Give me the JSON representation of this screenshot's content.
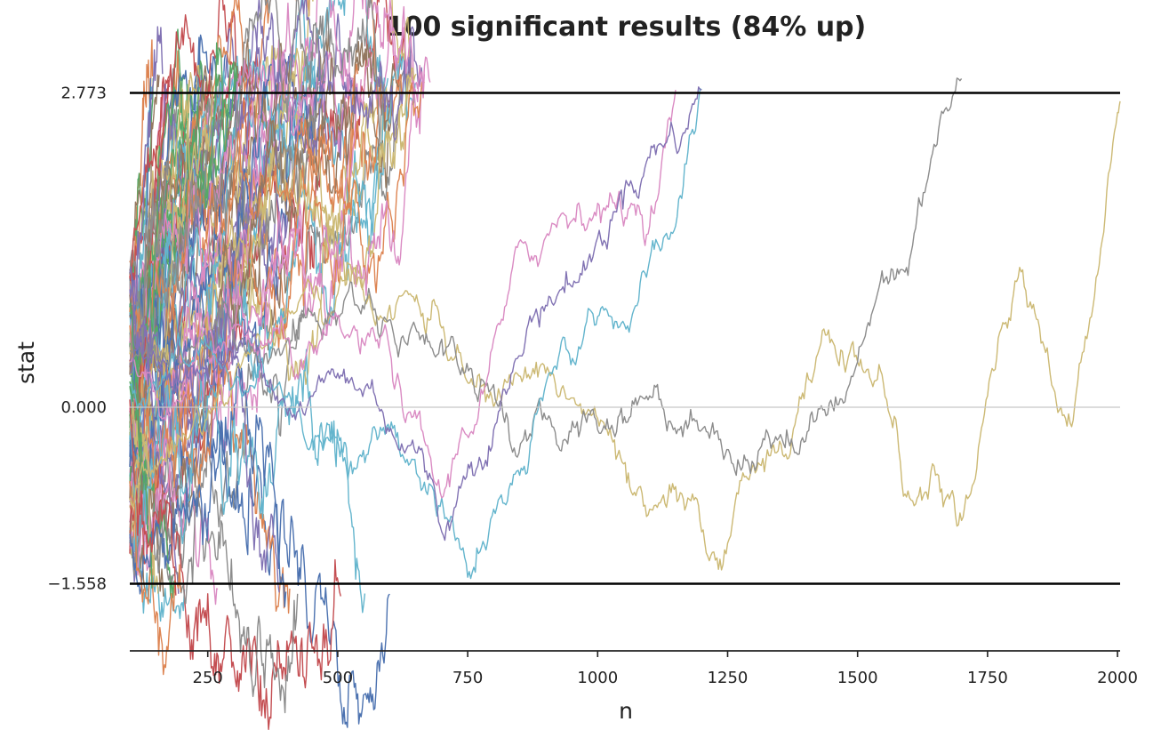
{
  "chart_data": {
    "type": "line",
    "title": "100 significant results (84% up)",
    "xlabel": "n",
    "ylabel": "stat",
    "xlim": [
      100,
      2005
    ],
    "ylim": [
      -2.15,
      2.95
    ],
    "xticks": [
      250,
      500,
      750,
      1000,
      1250,
      1500,
      1750,
      2000
    ],
    "yticks": [
      -1.558,
      0.0,
      2.773
    ],
    "ytick_labels": [
      "−1.558",
      "0.000",
      "2.773"
    ],
    "upper_bound": 2.773,
    "lower_bound": -1.558,
    "grid": false,
    "legend": "none",
    "series_count": 100,
    "share_up": 0.84,
    "palette": [
      "#4c72b0",
      "#dd8452",
      "#55a868",
      "#c44e52",
      "#8172b3",
      "#937860",
      "#da8bc3",
      "#8c8c8c",
      "#ccb974",
      "#64b5cd"
    ],
    "featured_series": [
      {
        "color": "#ccb974",
        "points": [
          [
            100,
            -0.8
          ],
          [
            200,
            -0.3
          ],
          [
            300,
            0.2
          ],
          [
            400,
            0.8
          ],
          [
            500,
            1.0
          ],
          [
            600,
            0.9
          ],
          [
            700,
            0.7
          ],
          [
            760,
            0.2
          ],
          [
            800,
            0.0
          ],
          [
            900,
            0.3
          ],
          [
            1000,
            -0.1
          ],
          [
            1050,
            -0.5
          ],
          [
            1100,
            -0.9
          ],
          [
            1150,
            -0.7
          ],
          [
            1200,
            -1.1
          ],
          [
            1250,
            -1.2
          ],
          [
            1300,
            -0.5
          ],
          [
            1350,
            -0.3
          ],
          [
            1400,
            0.2
          ],
          [
            1450,
            0.6
          ],
          [
            1500,
            0.4
          ],
          [
            1550,
            0.2
          ],
          [
            1600,
            -0.8
          ],
          [
            1650,
            -0.6
          ],
          [
            1700,
            -1.0
          ],
          [
            1750,
            0.1
          ],
          [
            1800,
            1.0
          ],
          [
            1850,
            0.7
          ],
          [
            1900,
            -0.1
          ],
          [
            1950,
            0.8
          ],
          [
            2000,
            2.6
          ],
          [
            2005,
            2.7
          ]
        ]
      },
      {
        "color": "#8c8c8c",
        "points": [
          [
            100,
            0.5
          ],
          [
            300,
            0.6
          ],
          [
            500,
            0.8
          ],
          [
            700,
            0.6
          ],
          [
            800,
            0.2
          ],
          [
            900,
            -0.1
          ],
          [
            1000,
            -0.2
          ],
          [
            1100,
            0.1
          ],
          [
            1200,
            -0.2
          ],
          [
            1300,
            -0.5
          ],
          [
            1400,
            -0.3
          ],
          [
            1500,
            0.4
          ],
          [
            1550,
            1.1
          ],
          [
            1600,
            1.3
          ],
          [
            1650,
            2.3
          ],
          [
            1700,
            2.9
          ]
        ]
      },
      {
        "color": "#64b5cd",
        "points": [
          [
            100,
            0.2
          ],
          [
            400,
            0.1
          ],
          [
            600,
            -0.2
          ],
          [
            700,
            -0.8
          ],
          [
            750,
            -1.5
          ],
          [
            800,
            -0.9
          ],
          [
            850,
            -0.6
          ],
          [
            900,
            0.2
          ],
          [
            1000,
            0.8
          ],
          [
            1100,
            1.3
          ],
          [
            1150,
            1.6
          ],
          [
            1200,
            2.8
          ]
        ]
      },
      {
        "color": "#da8bc3",
        "points": [
          [
            100,
            0.4
          ],
          [
            400,
            0.6
          ],
          [
            600,
            0.5
          ],
          [
            700,
            -0.8
          ],
          [
            800,
            0.6
          ],
          [
            900,
            1.5
          ],
          [
            1000,
            1.8
          ],
          [
            1050,
            1.6
          ],
          [
            1100,
            1.6
          ],
          [
            1150,
            2.8
          ]
        ]
      },
      {
        "color": "#8172b3",
        "points": [
          [
            100,
            0.3
          ],
          [
            500,
            0.3
          ],
          [
            650,
            -0.4
          ],
          [
            700,
            -1.1
          ],
          [
            760,
            -0.6
          ],
          [
            800,
            -0.2
          ],
          [
            900,
            0.9
          ],
          [
            1000,
            1.5
          ],
          [
            1100,
            2.2
          ],
          [
            1150,
            2.3
          ],
          [
            1200,
            2.8
          ]
        ]
      }
    ]
  }
}
